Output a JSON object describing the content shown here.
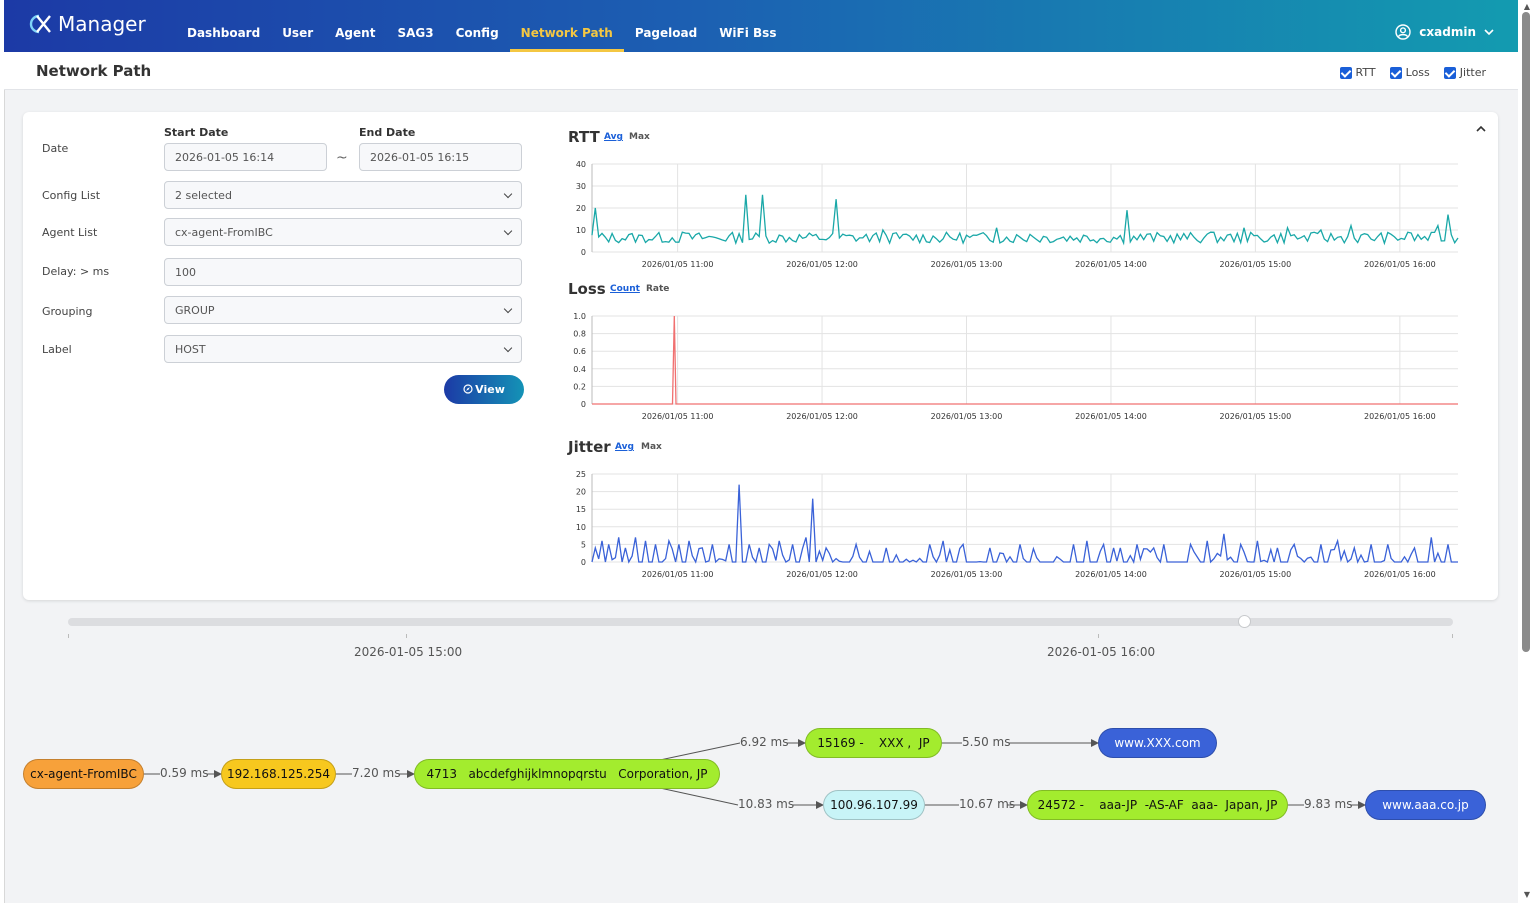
{
  "app": {
    "logo_text": "Manager"
  },
  "nav": {
    "items": [
      {
        "label": "Dashboard"
      },
      {
        "label": "User"
      },
      {
        "label": "Agent"
      },
      {
        "label": "SAG3"
      },
      {
        "label": "Config"
      },
      {
        "label": "Network Path",
        "active": true
      },
      {
        "label": "Pageload"
      },
      {
        "label": "WiFi Bss"
      }
    ],
    "user": "cxadmin"
  },
  "header": {
    "title": "Network Path",
    "toggles": [
      {
        "label": "RTT",
        "checked": true
      },
      {
        "label": "Loss",
        "checked": true
      },
      {
        "label": "Jitter",
        "checked": true
      }
    ]
  },
  "form": {
    "date_label": "Date",
    "start_date_label": "Start Date",
    "start_date": "2026-01-05 16:14",
    "tilde": "~",
    "end_date_label": "End Date",
    "end_date": "2026-01-05 16:15",
    "config_list_label": "Config List",
    "config_list_value": "2 selected",
    "agent_list_label": "Agent List",
    "agent_list_value": "cx-agent-FromIBC",
    "delay_label": "Delay: > ms",
    "delay_value": "100",
    "grouping_label": "Grouping",
    "grouping_value": "GROUP",
    "label_label": "Label",
    "label_value": "HOST",
    "view_button": "View"
  },
  "chart_data": [
    {
      "type": "line",
      "title": "RTT",
      "options": [
        "Avg",
        "Max"
      ],
      "active_option": "Avg",
      "x_ticks": [
        "2026/01/05 11:00",
        "2026/01/05 12:00",
        "2026/01/05 13:00",
        "2026/01/05 14:00",
        "2026/01/05 15:00",
        "2026/01/05 16:00"
      ],
      "y_ticks": [
        "0",
        "10",
        "20",
        "30",
        "40"
      ],
      "ylim": [
        0,
        40
      ],
      "color": "#1aa8a8",
      "baseline": 6,
      "spikes": [
        [
          0.005,
          20
        ],
        [
          0.106,
          9
        ],
        [
          0.178,
          26
        ],
        [
          0.198,
          26
        ],
        [
          0.283,
          24
        ],
        [
          0.335,
          10
        ],
        [
          0.468,
          11
        ],
        [
          0.505,
          8
        ],
        [
          0.617,
          19
        ],
        [
          0.713,
          9
        ],
        [
          0.751,
          11
        ],
        [
          0.803,
          11
        ],
        [
          0.843,
          10
        ],
        [
          0.878,
          12
        ],
        [
          0.941,
          9
        ],
        [
          0.977,
          12
        ],
        [
          0.99,
          17
        ]
      ],
      "grid": true
    },
    {
      "type": "line",
      "title": "Loss",
      "options": [
        "Count",
        "Rate"
      ],
      "active_option": "Count",
      "x_ticks": [
        "2026/01/05 11:00",
        "2026/01/05 12:00",
        "2026/01/05 13:00",
        "2026/01/05 14:00",
        "2026/01/05 15:00",
        "2026/01/05 16:00"
      ],
      "y_ticks": [
        "0",
        "0.2",
        "0.4",
        "0.6",
        "0.8",
        "1.0"
      ],
      "ylim": [
        0,
        1
      ],
      "color": "#f07070",
      "points": [
        [
          0.0,
          0
        ],
        [
          0.093,
          0
        ],
        [
          0.095,
          1.0
        ],
        [
          0.097,
          0
        ],
        [
          1.0,
          0
        ]
      ],
      "grid": true
    },
    {
      "type": "line",
      "title": "Jitter",
      "options": [
        "Avg",
        "Max"
      ],
      "active_option": "Avg",
      "x_ticks": [
        "2026/01/05 11:00",
        "2026/01/05 12:00",
        "2026/01/05 13:00",
        "2026/01/05 14:00",
        "2026/01/05 15:00",
        "2026/01/05 16:00"
      ],
      "y_ticks": [
        "0",
        "5",
        "10",
        "15",
        "20",
        "25"
      ],
      "ylim": [
        0,
        25
      ],
      "color": "#3a62d8",
      "baseline": 0,
      "spikes": [
        [
          0.004,
          4
        ],
        [
          0.012,
          6
        ],
        [
          0.02,
          5
        ],
        [
          0.03,
          7
        ],
        [
          0.04,
          4
        ],
        [
          0.052,
          7
        ],
        [
          0.062,
          6
        ],
        [
          0.075,
          5
        ],
        [
          0.087,
          6
        ],
        [
          0.1,
          5
        ],
        [
          0.112,
          6
        ],
        [
          0.128,
          4
        ],
        [
          0.14,
          5
        ],
        [
          0.158,
          5
        ],
        [
          0.17,
          22
        ],
        [
          0.18,
          5
        ],
        [
          0.193,
          4
        ],
        [
          0.205,
          5
        ],
        [
          0.215,
          6
        ],
        [
          0.23,
          5
        ],
        [
          0.246,
          7
        ],
        [
          0.253,
          18
        ],
        [
          0.27,
          4
        ],
        [
          0.305,
          5
        ],
        [
          0.32,
          3
        ],
        [
          0.34,
          4
        ],
        [
          0.39,
          5
        ],
        [
          0.405,
          6
        ],
        [
          0.43,
          5
        ],
        [
          0.46,
          4
        ],
        [
          0.495,
          5
        ],
        [
          0.555,
          5
        ],
        [
          0.57,
          6
        ],
        [
          0.59,
          5
        ],
        [
          0.61,
          4
        ],
        [
          0.63,
          5
        ],
        [
          0.65,
          4
        ],
        [
          0.66,
          5
        ],
        [
          0.69,
          5
        ],
        [
          0.71,
          6
        ],
        [
          0.73,
          8
        ],
        [
          0.75,
          5
        ],
        [
          0.77,
          6
        ],
        [
          0.79,
          4
        ],
        [
          0.81,
          5
        ],
        [
          0.84,
          5
        ],
        [
          0.86,
          6
        ],
        [
          0.88,
          4
        ],
        [
          0.9,
          5
        ],
        [
          0.92,
          5
        ],
        [
          0.95,
          4
        ],
        [
          0.97,
          7
        ],
        [
          0.99,
          5
        ]
      ],
      "grid": true
    }
  ],
  "timeline": {
    "labels": [
      "2026-01-05 15:00",
      "2026-01-05 16:00"
    ]
  },
  "path": {
    "nodes": {
      "agent": "cx-agent-FromIBC",
      "gateway": "192.168.125.254",
      "as4713": "4713   abcdefghijklmnopqrstu   Corporation, JP",
      "as15169": "15169 -    XXX ,  JP",
      "dest1": "www.XXX.com",
      "hop": "100.96.107.99",
      "as24572": "24572 -    aaa-JP  -AS-AF  aaa-  Japan, JP",
      "dest2": "www.aaa.co.jp"
    },
    "edges": {
      "e1": "0.59 ms",
      "e2": "7.20 ms",
      "e3": "6.92 ms",
      "e4": "5.50 ms",
      "e5": "10.83 ms",
      "e6": "10.67 ms",
      "e7": "9.83 ms"
    },
    "colors": {
      "agent": "#f7a13a",
      "gateway": "#f7c81e",
      "as": "#a3ec2e",
      "hop": "#c8f4f7",
      "dest": "#3a62d8"
    }
  }
}
